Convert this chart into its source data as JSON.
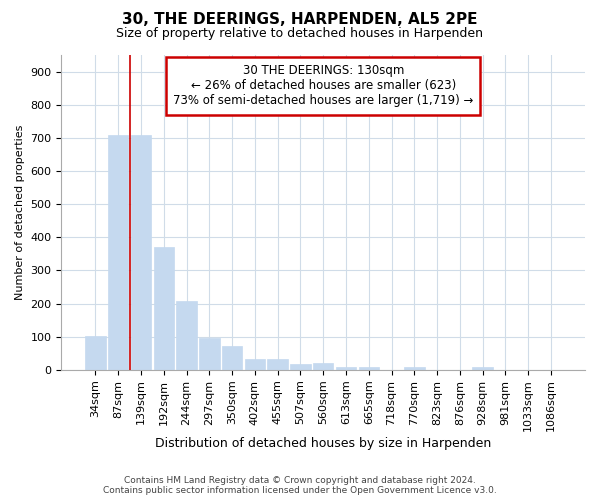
{
  "title1": "30, THE DEERINGS, HARPENDEN, AL5 2PE",
  "title2": "Size of property relative to detached houses in Harpenden",
  "xlabel": "Distribution of detached houses by size in Harpenden",
  "ylabel": "Number of detached properties",
  "categories": [
    "34sqm",
    "87sqm",
    "139sqm",
    "192sqm",
    "244sqm",
    "297sqm",
    "350sqm",
    "402sqm",
    "455sqm",
    "507sqm",
    "560sqm",
    "613sqm",
    "665sqm",
    "718sqm",
    "770sqm",
    "823sqm",
    "876sqm",
    "928sqm",
    "981sqm",
    "1033sqm",
    "1086sqm"
  ],
  "values": [
    103,
    710,
    710,
    370,
    208,
    95,
    73,
    33,
    33,
    18,
    20,
    8,
    10,
    0,
    8,
    0,
    0,
    10,
    0,
    0,
    0
  ],
  "bar_color": "#c5d9ef",
  "bar_edge_color": "#c5d9ef",
  "vline_x_idx": 2,
  "vline_color": "#cc0000",
  "ann_line1": "30 THE DEERINGS: 130sqm",
  "ann_line2": "← 26% of detached houses are smaller (623)",
  "ann_line3": "73% of semi-detached houses are larger (1,719) →",
  "ann_box_fc": "#ffffff",
  "ann_box_ec": "#cc0000",
  "bg_color": "#ffffff",
  "plot_bg_color": "#ffffff",
  "grid_color": "#d0dce8",
  "ylim_max": 950,
  "yticks": [
    0,
    100,
    200,
    300,
    400,
    500,
    600,
    700,
    800,
    900
  ],
  "footer": "Contains HM Land Registry data © Crown copyright and database right 2024.\nContains public sector information licensed under the Open Government Licence v3.0.",
  "title1_fontsize": 11,
  "title2_fontsize": 9,
  "ylabel_fontsize": 8,
  "xlabel_fontsize": 9,
  "tick_fontsize": 8,
  "ann_fontsize": 8.5,
  "footer_fontsize": 6.5
}
